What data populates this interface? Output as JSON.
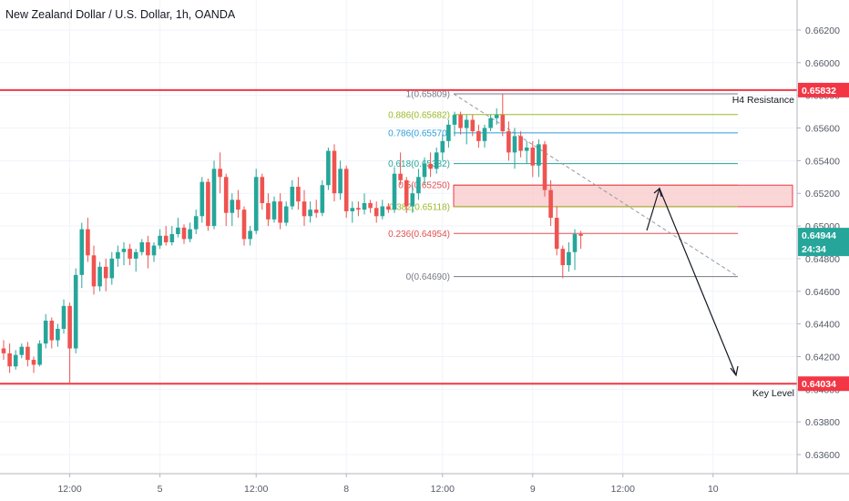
{
  "window": {
    "title": "New Zealand Dollar / U.S. Dollar, 1h, OANDA"
  },
  "chart_data": {
    "type": "candlestick",
    "title": "New Zealand Dollar / U.S. Dollar, 1h, OANDA",
    "symbol": "NZDUSD",
    "timeframe": "1h",
    "broker": "OANDA",
    "ylim": [
      0.6355,
      0.663
    ],
    "y_ticks": [
      "0.66200",
      "0.66000",
      "0.65800",
      "0.65600",
      "0.65400",
      "0.65200",
      "0.65000",
      "0.64800",
      "0.64600",
      "0.64400",
      "0.64200",
      "0.64000",
      "0.63800",
      "0.63600"
    ],
    "x_ticks": [
      "12:00",
      "5",
      "12:00",
      "8",
      "12:00",
      "9",
      "12:00",
      "10"
    ],
    "grid": true,
    "colors": {
      "up": "#26a69a",
      "down": "#ef5350",
      "resistance": "#f23645",
      "zone_fill": "#f8c8c8"
    },
    "price_tags": [
      {
        "label": "0.65832",
        "value": 0.65832,
        "color": "#f23645"
      },
      {
        "label": "0.64944",
        "value": 0.64944,
        "color": "#26a69a"
      },
      {
        "label": "24:34",
        "value": 0.6486,
        "color": "#26a69a"
      },
      {
        "label": "0.64034",
        "value": 0.64034,
        "color": "#f23645"
      }
    ],
    "horizontal_levels": [
      {
        "name": "H4 Resistance",
        "value": 0.65832
      },
      {
        "name": "Key Level",
        "value": 0.64034
      }
    ],
    "fibonacci": [
      {
        "label": "1(0.65809)",
        "value": 0.65809,
        "color": "#787b86"
      },
      {
        "label": "0.886(0.65682)",
        "value": 0.65682,
        "color": "#9cb92a"
      },
      {
        "label": "0.786(0.65570)",
        "value": 0.6557,
        "color": "#2f9ed8"
      },
      {
        "label": "0.618(0.65382)",
        "value": 0.65382,
        "color": "#26a69a"
      },
      {
        "label": "0.5(0.65250)",
        "value": 0.6525,
        "color": "#e05050"
      },
      {
        "label": "0.382(0.65118)",
        "value": 0.65118,
        "color": "#9cb92a"
      },
      {
        "label": "0.236(0.64954)",
        "value": 0.64954,
        "color": "#e05050"
      },
      {
        "label": "0(0.64690)",
        "value": 0.6469,
        "color": "#787b86"
      }
    ],
    "zone": {
      "top": 0.6525,
      "bottom": 0.65118
    },
    "candles": [
      [
        0.6425,
        0.643,
        0.6418,
        0.6422
      ],
      [
        0.6422,
        0.6428,
        0.641,
        0.6414
      ],
      [
        0.6414,
        0.6424,
        0.6412,
        0.6421
      ],
      [
        0.6421,
        0.6428,
        0.6419,
        0.6426
      ],
      [
        0.6426,
        0.6429,
        0.6414,
        0.6418
      ],
      [
        0.6418,
        0.642,
        0.641,
        0.6415
      ],
      [
        0.6415,
        0.643,
        0.6414,
        0.6428
      ],
      [
        0.6428,
        0.6446,
        0.6425,
        0.6442
      ],
      [
        0.6442,
        0.6444,
        0.6425,
        0.643
      ],
      [
        0.643,
        0.644,
        0.6426,
        0.6437
      ],
      [
        0.6437,
        0.6455,
        0.6434,
        0.6451
      ],
      [
        0.6451,
        0.6453,
        0.6403,
        0.6425
      ],
      [
        0.6425,
        0.6474,
        0.6422,
        0.647
      ],
      [
        0.647,
        0.6502,
        0.6462,
        0.6498
      ],
      [
        0.6498,
        0.6505,
        0.6478,
        0.6482
      ],
      [
        0.6482,
        0.6488,
        0.6458,
        0.6463
      ],
      [
        0.6463,
        0.6478,
        0.646,
        0.6475
      ],
      [
        0.6475,
        0.648,
        0.646,
        0.6468
      ],
      [
        0.6468,
        0.6484,
        0.6464,
        0.648
      ],
      [
        0.648,
        0.6488,
        0.6475,
        0.6484
      ],
      [
        0.6484,
        0.649,
        0.6476,
        0.6486
      ],
      [
        0.6486,
        0.6489,
        0.6476,
        0.648
      ],
      [
        0.648,
        0.6486,
        0.6472,
        0.6484
      ],
      [
        0.6484,
        0.6492,
        0.6482,
        0.649
      ],
      [
        0.649,
        0.6494,
        0.6474,
        0.6482
      ],
      [
        0.6482,
        0.649,
        0.6478,
        0.6488
      ],
      [
        0.6488,
        0.6498,
        0.6486,
        0.6494
      ],
      [
        0.6494,
        0.65,
        0.6488,
        0.649
      ],
      [
        0.649,
        0.65,
        0.6488,
        0.6495
      ],
      [
        0.6495,
        0.6505,
        0.6493,
        0.6499
      ],
      [
        0.6499,
        0.6501,
        0.6489,
        0.6492
      ],
      [
        0.6492,
        0.6502,
        0.649,
        0.6498
      ],
      [
        0.6498,
        0.651,
        0.6495,
        0.6506
      ],
      [
        0.6506,
        0.653,
        0.6502,
        0.6527
      ],
      [
        0.6527,
        0.6529,
        0.6497,
        0.65
      ],
      [
        0.65,
        0.654,
        0.6498,
        0.6535
      ],
      [
        0.6535,
        0.6545,
        0.652,
        0.653
      ],
      [
        0.653,
        0.6532,
        0.65,
        0.6508
      ],
      [
        0.6508,
        0.652,
        0.65,
        0.6516
      ],
      [
        0.6516,
        0.6522,
        0.6505,
        0.651
      ],
      [
        0.651,
        0.6512,
        0.6488,
        0.6492
      ],
      [
        0.6492,
        0.65,
        0.6488,
        0.6497
      ],
      [
        0.6497,
        0.6535,
        0.6495,
        0.653
      ],
      [
        0.653,
        0.6532,
        0.651,
        0.6514
      ],
      [
        0.6514,
        0.652,
        0.65,
        0.6504
      ],
      [
        0.6504,
        0.6518,
        0.6502,
        0.6515
      ],
      [
        0.6515,
        0.652,
        0.6498,
        0.6502
      ],
      [
        0.6502,
        0.6515,
        0.65,
        0.6512
      ],
      [
        0.6512,
        0.6528,
        0.651,
        0.6524
      ],
      [
        0.6524,
        0.653,
        0.651,
        0.6515
      ],
      [
        0.6515,
        0.6522,
        0.65,
        0.6506
      ],
      [
        0.6506,
        0.6515,
        0.6502,
        0.651
      ],
      [
        0.651,
        0.6516,
        0.6505,
        0.6508
      ],
      [
        0.6508,
        0.6528,
        0.6506,
        0.6525
      ],
      [
        0.6525,
        0.6548,
        0.6522,
        0.6546
      ],
      [
        0.6546,
        0.655,
        0.6515,
        0.652
      ],
      [
        0.652,
        0.654,
        0.6516,
        0.6535
      ],
      [
        0.6535,
        0.6537,
        0.6505,
        0.6509
      ],
      [
        0.6509,
        0.6515,
        0.6502,
        0.6511
      ],
      [
        0.6511,
        0.6515,
        0.6506,
        0.651
      ],
      [
        0.651,
        0.652,
        0.6507,
        0.6514
      ],
      [
        0.6514,
        0.6516,
        0.6508,
        0.6511
      ],
      [
        0.6511,
        0.6515,
        0.6502,
        0.6506
      ],
      [
        0.6506,
        0.6516,
        0.6504,
        0.6512
      ],
      [
        0.6512,
        0.6514,
        0.6508,
        0.651
      ],
      [
        0.651,
        0.6536,
        0.6508,
        0.6532
      ],
      [
        0.6532,
        0.6545,
        0.6525,
        0.6528
      ],
      [
        0.6528,
        0.653,
        0.6508,
        0.6512
      ],
      [
        0.6512,
        0.6525,
        0.6508,
        0.652
      ],
      [
        0.652,
        0.6535,
        0.6516,
        0.653
      ],
      [
        0.653,
        0.6542,
        0.6525,
        0.6538
      ],
      [
        0.6538,
        0.6545,
        0.653,
        0.6535
      ],
      [
        0.6535,
        0.6548,
        0.6532,
        0.6545
      ],
      [
        0.6545,
        0.6556,
        0.654,
        0.6552
      ],
      [
        0.6552,
        0.6565,
        0.6548,
        0.6562
      ],
      [
        0.6562,
        0.657,
        0.6555,
        0.6568
      ],
      [
        0.6568,
        0.657,
        0.6556,
        0.656
      ],
      [
        0.656,
        0.6568,
        0.655,
        0.6565
      ],
      [
        0.6565,
        0.6568,
        0.6555,
        0.6558
      ],
      [
        0.6558,
        0.6562,
        0.6548,
        0.6552
      ],
      [
        0.6552,
        0.6562,
        0.6548,
        0.656
      ],
      [
        0.656,
        0.6568,
        0.6558,
        0.6566
      ],
      [
        0.6566,
        0.6572,
        0.6562,
        0.6568
      ],
      [
        0.6568,
        0.6581,
        0.6555,
        0.6558
      ],
      [
        0.6558,
        0.6564,
        0.654,
        0.6545
      ],
      [
        0.6545,
        0.656,
        0.6535,
        0.6555
      ],
      [
        0.6555,
        0.6558,
        0.6542,
        0.6546
      ],
      [
        0.6546,
        0.6552,
        0.6538,
        0.6548
      ],
      [
        0.6548,
        0.6552,
        0.653,
        0.6537
      ],
      [
        0.6537,
        0.6553,
        0.653,
        0.655
      ],
      [
        0.655,
        0.6552,
        0.6518,
        0.6522
      ],
      [
        0.6522,
        0.6528,
        0.65,
        0.6505
      ],
      [
        0.6505,
        0.6512,
        0.6482,
        0.6486
      ],
      [
        0.6486,
        0.6488,
        0.6468,
        0.6476
      ],
      [
        0.6476,
        0.649,
        0.6472,
        0.6484
      ],
      [
        0.6484,
        0.6498,
        0.6473,
        0.6495
      ],
      [
        0.6495,
        0.6497,
        0.6486,
        0.6494
      ]
    ]
  }
}
